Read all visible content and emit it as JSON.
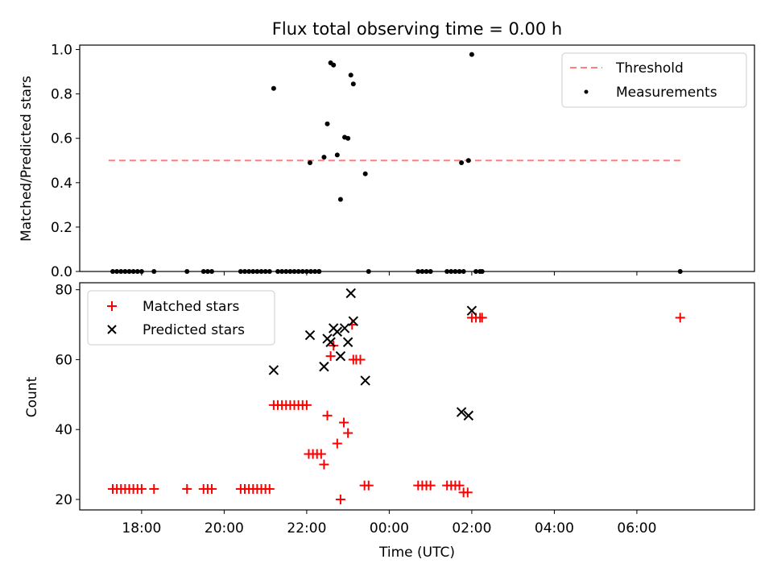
{
  "title": "Flux total observing time = 0.00 h",
  "chart_data": [
    {
      "type": "scatter",
      "ylabel": "Matched/Predicted stars",
      "xlabel": "",
      "xlim_hours": [
        16.5,
        32.85
      ],
      "ylim": [
        0,
        1.02
      ],
      "yticks": [
        0.0,
        0.2,
        0.4,
        0.6,
        0.8,
        1.0
      ],
      "ytick_labels": [
        "0.0",
        "0.2",
        "0.4",
        "0.6",
        "0.8",
        "1.0"
      ],
      "threshold": {
        "name": "Threshold",
        "y": 0.5,
        "x_start_hours": 17.2,
        "x_end_hours": 31.1,
        "color": "#ff7f7f"
      },
      "legend": [
        {
          "label": "Threshold",
          "kind": "dash",
          "color": "#ff7f7f"
        },
        {
          "label": "Measurements",
          "kind": "dot",
          "color": "#000000"
        }
      ],
      "legend_loc": "upper right",
      "series": [
        {
          "name": "Measurements",
          "color": "#000000",
          "points": [
            [
              17.3,
              0
            ],
            [
              17.4,
              0
            ],
            [
              17.5,
              0
            ],
            [
              17.6,
              0
            ],
            [
              17.7,
              0
            ],
            [
              17.8,
              0
            ],
            [
              17.9,
              0
            ],
            [
              18.0,
              0
            ],
            [
              18.3,
              0
            ],
            [
              19.1,
              0
            ],
            [
              19.5,
              0
            ],
            [
              19.6,
              0
            ],
            [
              19.7,
              0
            ],
            [
              20.4,
              0
            ],
            [
              20.5,
              0
            ],
            [
              20.6,
              0
            ],
            [
              20.7,
              0
            ],
            [
              20.8,
              0
            ],
            [
              20.9,
              0
            ],
            [
              21.0,
              0
            ],
            [
              21.1,
              0
            ],
            [
              21.3,
              0
            ],
            [
              21.4,
              0
            ],
            [
              21.5,
              0
            ],
            [
              21.6,
              0
            ],
            [
              21.7,
              0
            ],
            [
              21.8,
              0
            ],
            [
              21.9,
              0
            ],
            [
              22.0,
              0
            ],
            [
              22.1,
              0
            ],
            [
              22.2,
              0
            ],
            [
              22.3,
              0
            ],
            [
              22.3,
              0
            ],
            [
              21.2,
              0.825
            ],
            [
              22.08,
              0.49
            ],
            [
              22.42,
              0.515
            ],
            [
              22.5,
              0.665
            ],
            [
              22.58,
              0.94
            ],
            [
              22.65,
              0.93
            ],
            [
              22.74,
              0.525
            ],
            [
              22.82,
              0.325
            ],
            [
              22.92,
              0.605
            ],
            [
              23.0,
              0.6
            ],
            [
              23.07,
              0.885
            ],
            [
              23.13,
              0.845
            ],
            [
              23.42,
              0.44
            ],
            [
              23.5,
              0
            ],
            [
              24.7,
              0
            ],
            [
              24.8,
              0
            ],
            [
              24.9,
              0
            ],
            [
              25.0,
              0
            ],
            [
              25.4,
              0
            ],
            [
              25.5,
              0
            ],
            [
              25.6,
              0
            ],
            [
              25.7,
              0
            ],
            [
              25.8,
              0
            ],
            [
              25.75,
              0.49
            ],
            [
              25.92,
              0.5
            ],
            [
              26.0,
              0.978
            ],
            [
              26.1,
              0
            ],
            [
              26.2,
              0
            ],
            [
              26.25,
              0
            ],
            [
              31.05,
              0
            ]
          ]
        }
      ]
    },
    {
      "type": "scatter",
      "ylabel": "Count",
      "xlabel": "Time (UTC)",
      "xlim_hours": [
        16.5,
        32.85
      ],
      "ylim": [
        17,
        82
      ],
      "yticks": [
        20,
        40,
        60,
        80
      ],
      "ytick_labels": [
        "20",
        "40",
        "60",
        "80"
      ],
      "xticks_hours": [
        18,
        20,
        22,
        24,
        26,
        28,
        30
      ],
      "xtick_labels": [
        "18:00",
        "20:00",
        "22:00",
        "00:00",
        "02:00",
        "04:00",
        "06:00"
      ],
      "legend": [
        {
          "label": "Matched stars",
          "kind": "plus",
          "color": "#ff0000"
        },
        {
          "label": "Predicted stars",
          "kind": "x",
          "color": "#000000"
        }
      ],
      "legend_loc": "upper left",
      "series": [
        {
          "name": "Matched stars",
          "marker": "plus",
          "color": "#ff0000",
          "points": [
            [
              17.3,
              23
            ],
            [
              17.4,
              23
            ],
            [
              17.5,
              23
            ],
            [
              17.6,
              23
            ],
            [
              17.7,
              23
            ],
            [
              17.8,
              23
            ],
            [
              17.9,
              23
            ],
            [
              18.0,
              23
            ],
            [
              18.3,
              23
            ],
            [
              19.1,
              23
            ],
            [
              19.5,
              23
            ],
            [
              19.6,
              23
            ],
            [
              19.7,
              23
            ],
            [
              20.4,
              23
            ],
            [
              20.5,
              23
            ],
            [
              20.6,
              23
            ],
            [
              20.7,
              23
            ],
            [
              20.8,
              23
            ],
            [
              20.9,
              23
            ],
            [
              21.0,
              23
            ],
            [
              21.1,
              23
            ],
            [
              21.2,
              47
            ],
            [
              21.3,
              47
            ],
            [
              21.4,
              47
            ],
            [
              21.5,
              47
            ],
            [
              21.6,
              47
            ],
            [
              21.7,
              47
            ],
            [
              21.8,
              47
            ],
            [
              21.9,
              47
            ],
            [
              22.0,
              47
            ],
            [
              22.05,
              33
            ],
            [
              22.15,
              33
            ],
            [
              22.25,
              33
            ],
            [
              22.35,
              33
            ],
            [
              22.42,
              30
            ],
            [
              22.5,
              44
            ],
            [
              22.58,
              61
            ],
            [
              22.65,
              64
            ],
            [
              22.74,
              36
            ],
            [
              22.82,
              20
            ],
            [
              22.9,
              42
            ],
            [
              23.0,
              39
            ],
            [
              23.1,
              70
            ],
            [
              23.13,
              60
            ],
            [
              23.2,
              60
            ],
            [
              23.3,
              60
            ],
            [
              23.4,
              24
            ],
            [
              23.5,
              24
            ],
            [
              24.7,
              24
            ],
            [
              24.8,
              24
            ],
            [
              24.9,
              24
            ],
            [
              25.0,
              24
            ],
            [
              25.4,
              24
            ],
            [
              25.5,
              24
            ],
            [
              25.6,
              24
            ],
            [
              25.7,
              24
            ],
            [
              25.8,
              22
            ],
            [
              25.9,
              22
            ],
            [
              26.0,
              72
            ],
            [
              26.1,
              72
            ],
            [
              26.2,
              72
            ],
            [
              26.25,
              72
            ],
            [
              31.05,
              72
            ]
          ]
        },
        {
          "name": "Predicted stars",
          "marker": "x",
          "color": "#000000",
          "points": [
            [
              21.2,
              57
            ],
            [
              22.08,
              67
            ],
            [
              22.42,
              58
            ],
            [
              22.5,
              66
            ],
            [
              22.58,
              65
            ],
            [
              22.65,
              69
            ],
            [
              22.74,
              68
            ],
            [
              22.82,
              61
            ],
            [
              22.92,
              69
            ],
            [
              23.0,
              65
            ],
            [
              23.07,
              79
            ],
            [
              23.13,
              71
            ],
            [
              23.42,
              54
            ],
            [
              25.75,
              45
            ],
            [
              25.92,
              44
            ],
            [
              26.0,
              74
            ]
          ]
        }
      ]
    }
  ]
}
